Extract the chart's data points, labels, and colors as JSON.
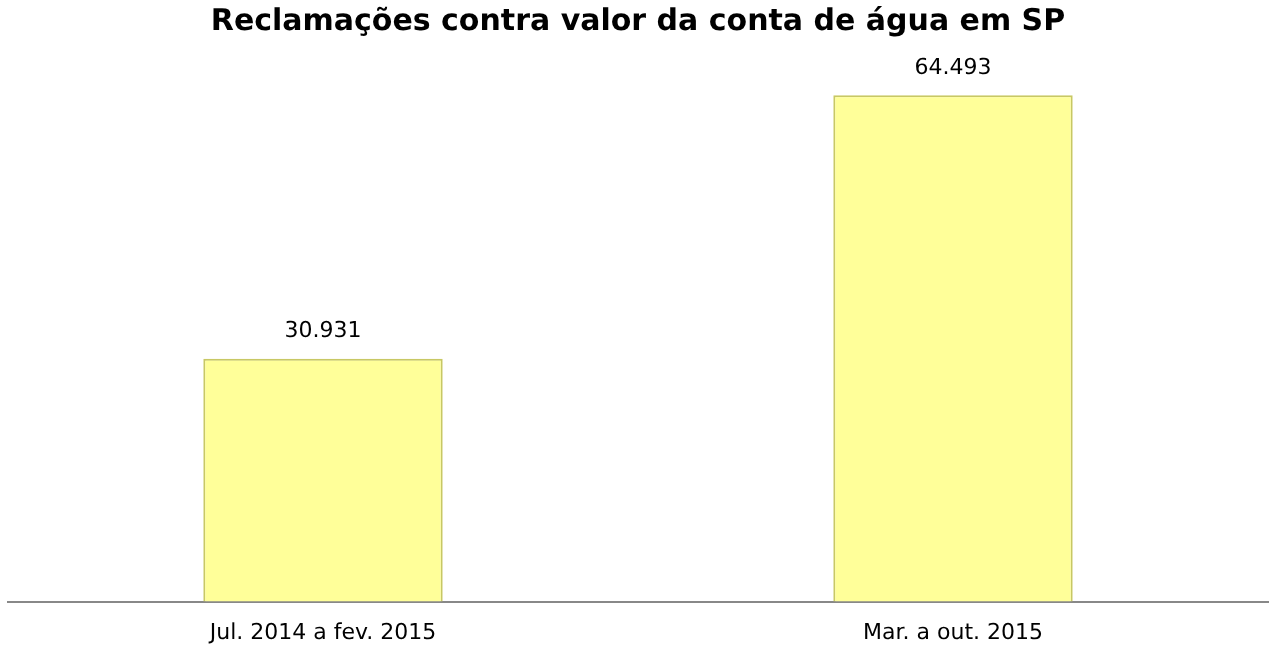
{
  "chart_data": {
    "type": "bar",
    "title": "Reclamações contra valor da conta de água em SP",
    "categories": [
      "Jul. 2014 a fev. 2015",
      "Mar. a out. 2015"
    ],
    "values": [
      30931,
      64493
    ],
    "value_labels": [
      "30.931",
      "64.493"
    ],
    "color": "#ffff99",
    "tick_labels": "x",
    "grid": false,
    "legend": false
  }
}
